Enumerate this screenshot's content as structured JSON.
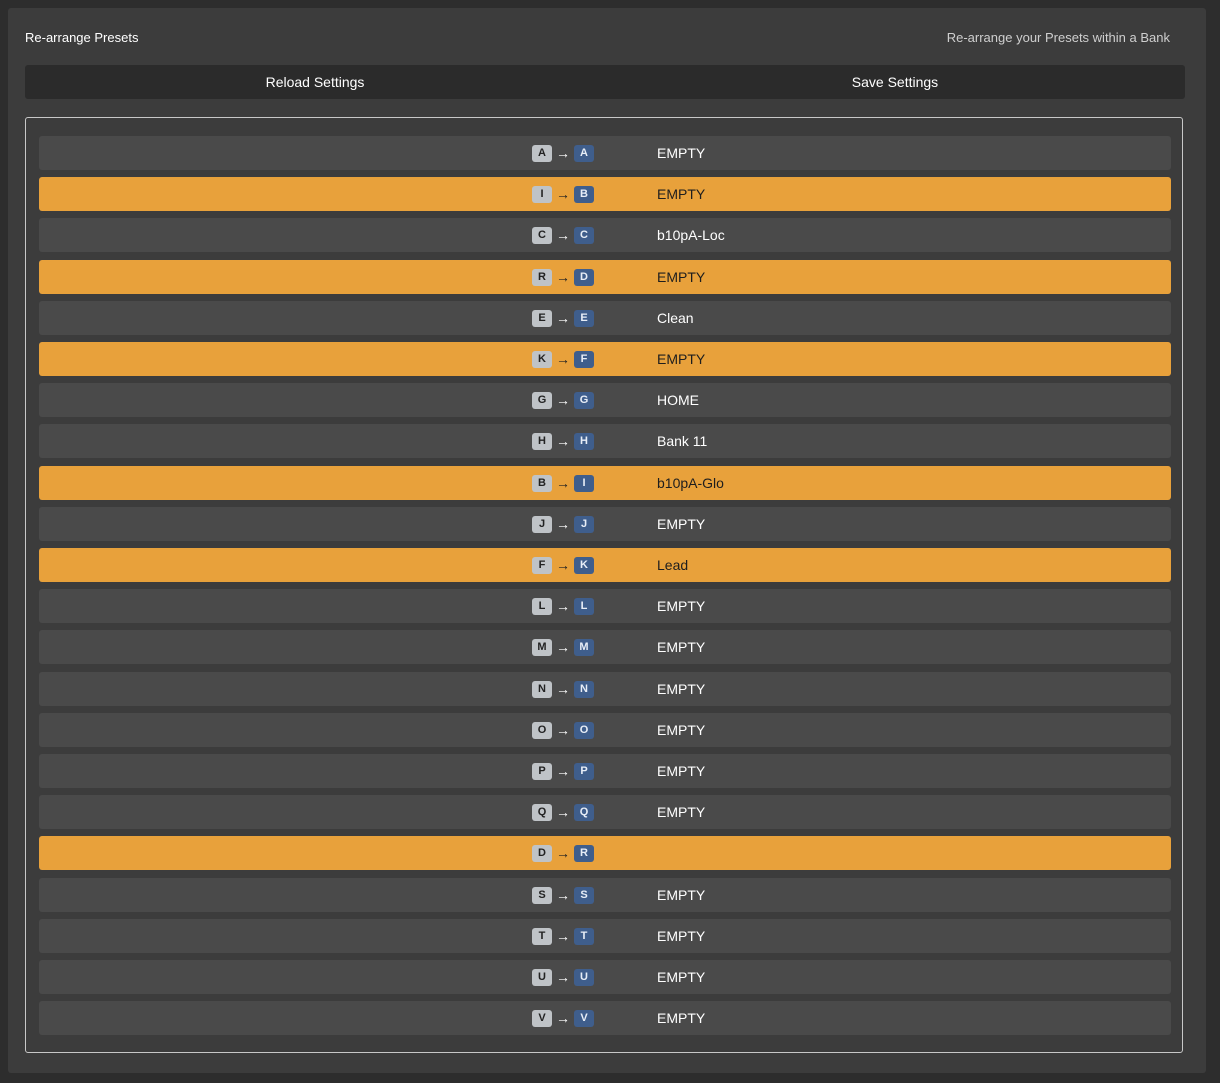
{
  "header": {
    "title": "Re-arrange Presets",
    "subtitle": "Re-arrange your Presets within a Bank"
  },
  "toolbar": {
    "reload_label": "Reload Settings",
    "save_label": "Save Settings"
  },
  "colors": {
    "moved_row": "#e8a13b",
    "row": "#4a4a4a",
    "source_key": "#bfc3c7",
    "target_key": "#3f5e8c"
  },
  "arrow_glyph": "→",
  "presets": [
    {
      "from": "A",
      "to": "A",
      "name": "EMPTY",
      "moved": false
    },
    {
      "from": "I",
      "to": "B",
      "name": "EMPTY",
      "moved": true
    },
    {
      "from": "C",
      "to": "C",
      "name": "b10pA-Loc",
      "moved": false
    },
    {
      "from": "R",
      "to": "D",
      "name": "EMPTY",
      "moved": true
    },
    {
      "from": "E",
      "to": "E",
      "name": "Clean",
      "moved": false
    },
    {
      "from": "K",
      "to": "F",
      "name": "EMPTY",
      "moved": true
    },
    {
      "from": "G",
      "to": "G",
      "name": "HOME",
      "moved": false
    },
    {
      "from": "H",
      "to": "H",
      "name": "Bank 11",
      "moved": false
    },
    {
      "from": "B",
      "to": "I",
      "name": "b10pA-Glo",
      "moved": true
    },
    {
      "from": "J",
      "to": "J",
      "name": "EMPTY",
      "moved": false
    },
    {
      "from": "F",
      "to": "K",
      "name": "Lead",
      "moved": true
    },
    {
      "from": "L",
      "to": "L",
      "name": "EMPTY",
      "moved": false
    },
    {
      "from": "M",
      "to": "M",
      "name": "EMPTY",
      "moved": false
    },
    {
      "from": "N",
      "to": "N",
      "name": "EMPTY",
      "moved": false
    },
    {
      "from": "O",
      "to": "O",
      "name": "EMPTY",
      "moved": false
    },
    {
      "from": "P",
      "to": "P",
      "name": "EMPTY",
      "moved": false
    },
    {
      "from": "Q",
      "to": "Q",
      "name": "EMPTY",
      "moved": false
    },
    {
      "from": "D",
      "to": "R",
      "name": "",
      "moved": true
    },
    {
      "from": "S",
      "to": "S",
      "name": "EMPTY",
      "moved": false
    },
    {
      "from": "T",
      "to": "T",
      "name": "EMPTY",
      "moved": false
    },
    {
      "from": "U",
      "to": "U",
      "name": "EMPTY",
      "moved": false
    },
    {
      "from": "V",
      "to": "V",
      "name": "EMPTY",
      "moved": false
    }
  ]
}
